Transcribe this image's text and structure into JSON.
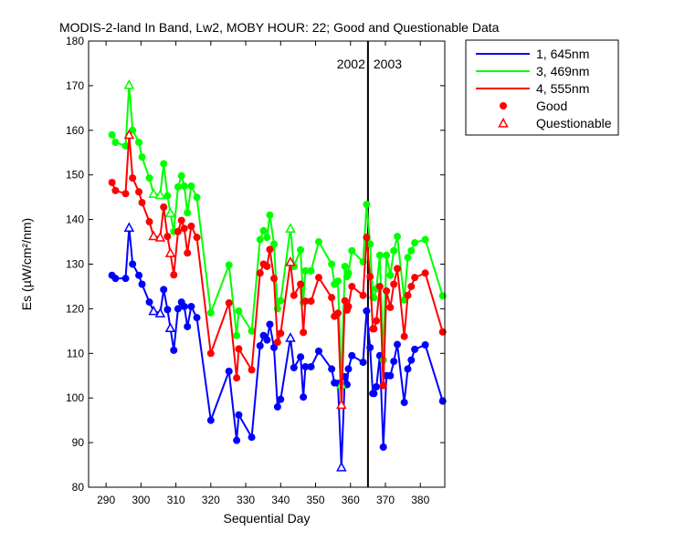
{
  "chart_data": {
    "type": "line",
    "title": "MODIS-2-land In Band,  Lw2, MOBY HOUR: 22;  Good and Questionable Data",
    "xlabel": "Sequential Day",
    "ylabel": "Es (µW/cm²/nm)",
    "xlim": [
      285,
      387
    ],
    "ylim": [
      80,
      180
    ],
    "xticks": [
      290,
      300,
      310,
      320,
      330,
      340,
      350,
      360,
      370,
      380
    ],
    "yticks": [
      80,
      90,
      100,
      110,
      120,
      130,
      140,
      150,
      160,
      170,
      180
    ],
    "grid": false,
    "legend_position": "outside-top-right",
    "year_divider": {
      "x": 365,
      "label_left": "2002",
      "label_right": "2003"
    },
    "series": [
      {
        "name": "1, 645nm",
        "color": "#0000ff",
        "x": [
          291.7,
          292.7,
          295.6,
          296.6,
          297.6,
          299.4,
          300.3,
          302.4,
          303.6,
          305.5,
          306.5,
          307.6,
          308.4,
          309.4,
          310.6,
          311.6,
          312.4,
          313.3,
          314.4,
          316.0,
          320.0,
          325.2,
          327.4,
          328.0,
          331.7,
          334.1,
          335.1,
          336.1,
          336.9,
          338.1,
          339.1,
          340.0,
          342.8,
          343.8,
          345.7,
          346.5,
          347.1,
          348.7,
          350.9,
          354.6,
          355.4,
          356.4,
          357.4,
          358.4,
          359.0,
          359.4,
          360.4,
          363.6,
          364.6,
          365.6,
          366.4,
          366.7,
          367.4,
          368.4,
          369.4,
          370.3,
          371.4,
          372.4,
          373.4,
          375.4,
          376.4,
          377.4,
          378.4,
          381.4,
          386.4
        ],
        "values": [
          127.5,
          126.8,
          126.8,
          138.2,
          130.0,
          127.5,
          125.5,
          121.5,
          119.5,
          119.0,
          124.3,
          119.8,
          115.7,
          110.7,
          120.0,
          121.5,
          120.5,
          116.0,
          120.5,
          118.0,
          95.0,
          106.0,
          90.5,
          96.2,
          91.2,
          111.7,
          114.0,
          113.0,
          116.5,
          111.3,
          98.0,
          99.7,
          113.5,
          106.8,
          109.2,
          100.2,
          107.0,
          107.0,
          110.5,
          106.5,
          103.4,
          103.3,
          84.5,
          104.8,
          103.0,
          106.5,
          109.5,
          108.0,
          119.5,
          111.3,
          101.0,
          101.0,
          102.5,
          109.5,
          89.0,
          105.0,
          105.0,
          108.2,
          112.0,
          99.0,
          106.5,
          108.5,
          110.9,
          111.9,
          99.3
        ],
        "quality": [
          "g",
          "g",
          "g",
          "q",
          "g",
          "g",
          "g",
          "g",
          "q",
          "q",
          "g",
          "g",
          "q",
          "g",
          "g",
          "g",
          "g",
          "g",
          "g",
          "g",
          "g",
          "g",
          "g",
          "g",
          "g",
          "g",
          "g",
          "g",
          "g",
          "g",
          "g",
          "g",
          "q",
          "g",
          "g",
          "g",
          "g",
          "g",
          "g",
          "g",
          "g",
          "g",
          "q",
          "g",
          "g",
          "g",
          "g",
          "g",
          "g",
          "g",
          "g",
          "g",
          "g",
          "g",
          "g",
          "g",
          "g",
          "g",
          "g",
          "g",
          "g",
          "g",
          "g",
          "g",
          "g"
        ]
      },
      {
        "name": "3, 469nm",
        "color": "#00ff00",
        "x": [
          291.7,
          292.7,
          295.6,
          296.6,
          297.6,
          299.4,
          300.3,
          302.4,
          303.6,
          305.5,
          306.5,
          307.6,
          308.4,
          309.4,
          310.6,
          311.6,
          312.4,
          313.3,
          314.4,
          316.0,
          320.0,
          325.2,
          327.4,
          328.0,
          331.7,
          334.1,
          335.1,
          336.1,
          336.9,
          338.1,
          339.1,
          340.0,
          342.8,
          343.8,
          345.7,
          346.5,
          347.1,
          348.7,
          350.9,
          354.6,
          355.4,
          356.4,
          357.4,
          358.4,
          359.0,
          359.4,
          360.4,
          363.6,
          364.6,
          365.6,
          366.4,
          366.7,
          367.4,
          368.4,
          369.4,
          370.3,
          371.4,
          372.4,
          373.4,
          375.4,
          376.4,
          377.4,
          378.4,
          381.4,
          386.4
        ],
        "values": [
          159.0,
          157.3,
          156.5,
          170.2,
          160.0,
          157.3,
          154.0,
          149.3,
          145.8,
          145.5,
          152.5,
          145.3,
          141.5,
          137.3,
          147.3,
          149.8,
          147.5,
          141.5,
          147.5,
          145.0,
          119.1,
          129.8,
          114.0,
          119.5,
          115.0,
          135.5,
          137.5,
          136.0,
          141.0,
          134.5,
          120.0,
          121.8,
          138.0,
          129.5,
          133.2,
          121.4,
          128.5,
          128.5,
          135.0,
          130.0,
          125.5,
          126.2,
          103.0,
          129.5,
          127.2,
          128.0,
          133.0,
          130.5,
          143.4,
          134.5,
          122.5,
          122.5,
          124.5,
          132.0,
          108.5,
          132.0,
          127.5,
          133.0,
          136.2,
          122.0,
          131.5,
          133.0,
          134.8,
          135.5,
          122.9
        ],
        "quality": [
          "g",
          "g",
          "g",
          "q",
          "g",
          "g",
          "g",
          "g",
          "q",
          "q",
          "g",
          "g",
          "q",
          "g",
          "g",
          "g",
          "g",
          "g",
          "g",
          "g",
          "g",
          "g",
          "g",
          "g",
          "g",
          "g",
          "g",
          "g",
          "g",
          "g",
          "g",
          "g",
          "q",
          "g",
          "g",
          "g",
          "g",
          "g",
          "g",
          "g",
          "g",
          "g",
          "q",
          "g",
          "g",
          "g",
          "g",
          "g",
          "g",
          "g",
          "g",
          "g",
          "g",
          "g",
          "g",
          "g",
          "g",
          "g",
          "g",
          "g",
          "g",
          "g",
          "g",
          "g",
          "g"
        ]
      },
      {
        "name": "4, 555nm",
        "color": "#ff0000",
        "x": [
          291.7,
          292.7,
          295.6,
          296.6,
          297.6,
          299.4,
          300.3,
          302.4,
          303.6,
          305.5,
          306.5,
          307.6,
          308.4,
          309.4,
          310.6,
          311.6,
          312.4,
          313.3,
          314.4,
          316.0,
          320.0,
          325.2,
          327.4,
          328.0,
          331.7,
          334.1,
          335.1,
          336.1,
          336.9,
          338.1,
          339.1,
          340.0,
          342.8,
          343.8,
          345.7,
          346.5,
          347.1,
          348.7,
          350.9,
          354.6,
          355.4,
          356.4,
          357.4,
          358.4,
          359.0,
          359.4,
          360.4,
          363.6,
          364.6,
          365.6,
          366.4,
          366.7,
          367.4,
          368.4,
          369.4,
          370.3,
          371.4,
          372.4,
          373.4,
          375.4,
          376.4,
          377.4,
          378.4,
          381.4,
          386.4
        ],
        "values": [
          148.3,
          146.5,
          145.8,
          159.0,
          149.3,
          146.2,
          143.8,
          139.5,
          136.3,
          136.0,
          142.8,
          136.2,
          132.5,
          127.6,
          137.3,
          139.8,
          138.0,
          132.5,
          138.5,
          136.0,
          110.0,
          121.3,
          104.5,
          111.0,
          106.3,
          128.0,
          130.0,
          129.5,
          133.3,
          126.8,
          112.5,
          114.5,
          130.5,
          123.0,
          125.5,
          114.7,
          121.7,
          121.7,
          127.0,
          122.5,
          118.3,
          119.0,
          98.5,
          121.8,
          119.7,
          120.5,
          125.0,
          123.0,
          136.0,
          127.2,
          115.5,
          115.5,
          117.3,
          125.0,
          102.8,
          124.0,
          120.3,
          125.5,
          129.0,
          113.8,
          123.0,
          125.0,
          127.0,
          128.0,
          114.8
        ],
        "quality": [
          "g",
          "g",
          "g",
          "q",
          "g",
          "g",
          "g",
          "g",
          "q",
          "q",
          "g",
          "g",
          "q",
          "g",
          "g",
          "g",
          "g",
          "g",
          "g",
          "g",
          "g",
          "g",
          "g",
          "g",
          "g",
          "g",
          "g",
          "g",
          "g",
          "g",
          "g",
          "g",
          "q",
          "g",
          "g",
          "g",
          "g",
          "g",
          "g",
          "g",
          "g",
          "g",
          "q",
          "g",
          "g",
          "g",
          "g",
          "g",
          "g",
          "g",
          "g",
          "g",
          "g",
          "g",
          "g",
          "g",
          "g",
          "g",
          "g",
          "g",
          "g",
          "g",
          "g",
          "g",
          "g"
        ]
      }
    ],
    "markers": [
      {
        "label": "Good",
        "shape": "circle"
      },
      {
        "label": "Questionable",
        "shape": "triangle"
      }
    ]
  }
}
